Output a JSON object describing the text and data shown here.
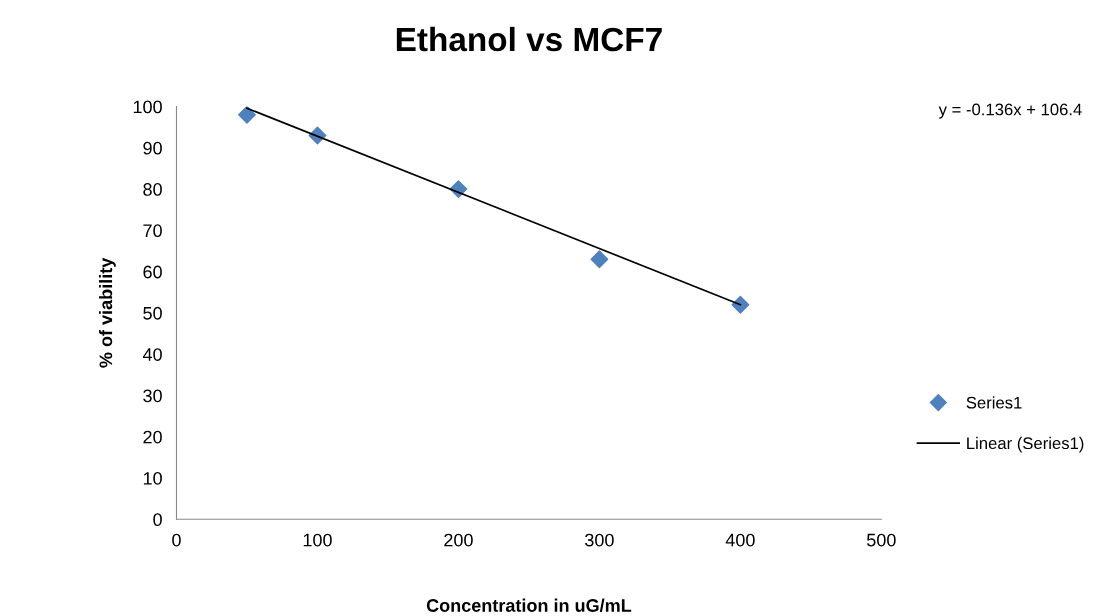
{
  "chart_data": {
    "type": "scatter",
    "title": "Ethanol vs MCF7",
    "xlabel": "Concentration in uG/mL",
    "ylabel": "% of viability",
    "annotations": [
      "y = -0.136x + 106.4"
    ],
    "series": [
      {
        "name": "Series1",
        "color": "#4f81bd",
        "marker": "diamond",
        "x": [
          50,
          100,
          200,
          300,
          400
        ],
        "values": [
          98,
          93,
          80,
          63,
          52
        ]
      },
      {
        "name": "Linear (Series1)",
        "type": "line",
        "color": "#000000",
        "marker": "none",
        "line_style": "solid",
        "x": [
          50,
          400
        ],
        "values": [
          99.6,
          52
        ]
      }
    ],
    "xlim": [
      0,
      500
    ],
    "xticks": [
      0,
      100,
      200,
      300,
      400,
      500
    ],
    "ylim": [
      0,
      100
    ],
    "yticks": [
      0,
      10,
      20,
      30,
      40,
      50,
      60,
      70,
      80,
      90,
      100
    ],
    "grid": false,
    "legend": "right"
  }
}
